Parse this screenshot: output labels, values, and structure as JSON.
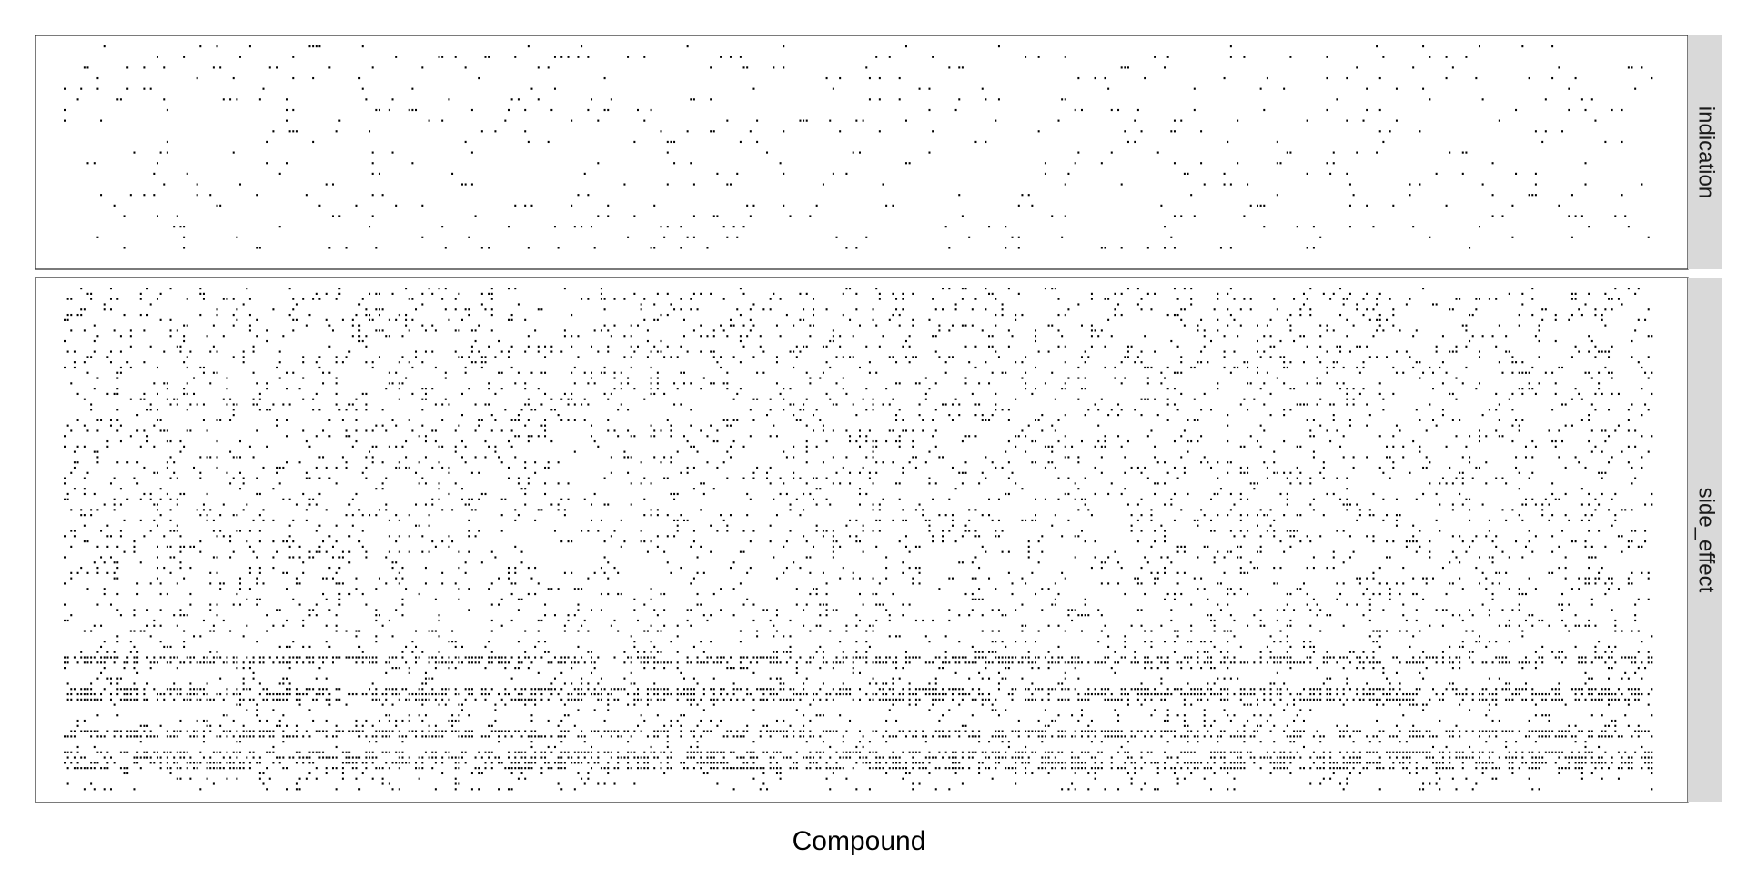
{
  "chart_data": {
    "type": "heatmap",
    "title": "",
    "xlabel": "Compound",
    "ylabel": "",
    "grid": false,
    "legend": "none",
    "x_tick_labels": "none",
    "y_tick_labels": "none",
    "mark_color": "#000000",
    "panel_background": "#ffffff",
    "panel_border_color": "#333333",
    "strip_color": "#d9d9d9",
    "strip_text_color": "#1a1a1a",
    "n_compounds": 480,
    "facets": [
      {
        "name": "indication",
        "n_rows": 20,
        "density": 0.06
      },
      {
        "name": "side_effect",
        "n_rows": 96,
        "density": 0.13
      }
    ],
    "dense_rows_side_effect": [
      70,
      71,
      76,
      77,
      78,
      84,
      85,
      88,
      89,
      90,
      91
    ]
  }
}
